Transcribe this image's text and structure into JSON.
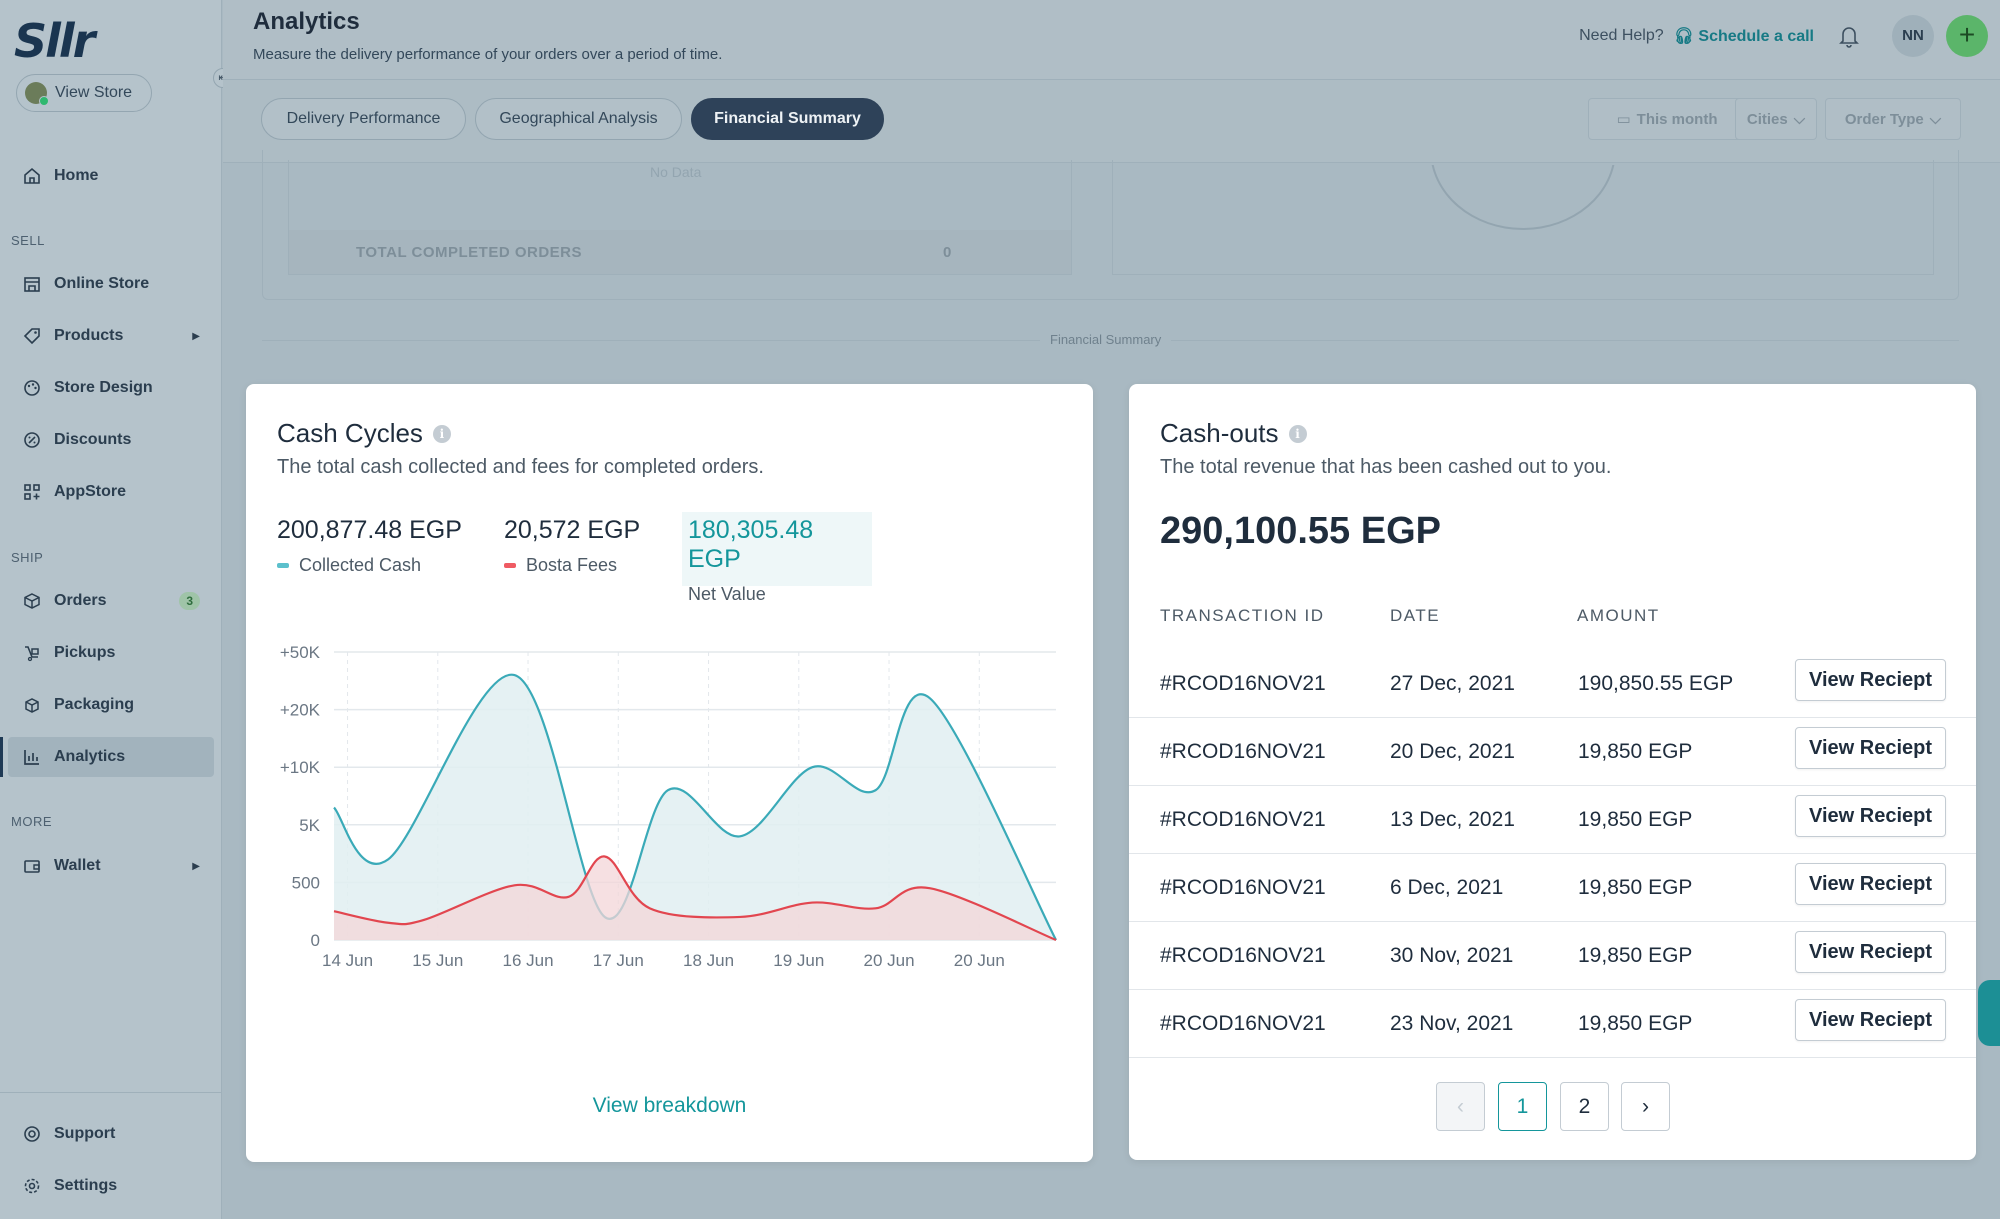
{
  "brand": {
    "logo_text": "Sllr"
  },
  "sidebar": {
    "view_store": "View Store",
    "home": "Home",
    "sections": {
      "sell": "SELL",
      "ship": "SHIP",
      "more": "MORE"
    },
    "items": {
      "online_store": "Online Store",
      "products": "Products",
      "store_design": "Store Design",
      "discounts": "Discounts",
      "appstore": "AppStore",
      "orders": "Orders",
      "orders_badge": "3",
      "pickups": "Pickups",
      "packaging": "Packaging",
      "analytics": "Analytics",
      "wallet": "Wallet",
      "support": "Support",
      "settings": "Settings"
    }
  },
  "header": {
    "title": "Analytics",
    "subtitle": "Measure the delivery performance of your orders over a period of time.",
    "need_help": "Need Help?",
    "schedule": "Schedule a call",
    "user_initials": "NN"
  },
  "tabs": {
    "delivery": "Delivery Performance",
    "geo": "Geographical Analysis",
    "financial": "Financial Summary"
  },
  "filters": {
    "date": "This month",
    "cities": "Cities",
    "order_type": "Order Type"
  },
  "background": {
    "no_data": "No Data",
    "total_completed_label": "TOTAL COMPLETED ORDERS",
    "total_completed_value": "0",
    "section_label": "Financial Summary"
  },
  "cash_cycles": {
    "title": "Cash Cycles",
    "subtitle": "The total cash collected and fees for completed orders.",
    "collected_value": "200,877.48 EGP",
    "collected_label": "Collected Cash",
    "fees_value": "20,572 EGP",
    "fees_label": "Bosta Fees",
    "net_value": "180,305.48 EGP",
    "net_label": "Net Value",
    "view_breakdown": "View breakdown"
  },
  "chart_data": {
    "type": "area",
    "x": [
      "14 Jun",
      "15 Jun",
      "16 Jun",
      "17 Jun",
      "18 Jun",
      "19 Jun",
      "20 Jun",
      "20 Jun"
    ],
    "y_ticks": [
      "0",
      "500",
      "5K",
      "+10K",
      "+20K",
      "+50K"
    ],
    "series": [
      {
        "name": "Collected Cash",
        "color": "#3aaab8",
        "fill": "#e0eef1",
        "points": [
          [
            0,
            2.3
          ],
          [
            0.6,
            1.4
          ],
          [
            2.0,
            4.6
          ],
          [
            3.0,
            0.4
          ],
          [
            3.7,
            2.6
          ],
          [
            4.5,
            1.8
          ],
          [
            5.3,
            3.0
          ],
          [
            6.0,
            2.6
          ],
          [
            6.6,
            4.2
          ],
          [
            8.0,
            0.0
          ]
        ]
      },
      {
        "name": "Bosta Fees",
        "color": "#e2464f",
        "fill": "#f3d6d8",
        "points": [
          [
            0,
            0.5
          ],
          [
            0.6,
            0.3
          ],
          [
            1.0,
            0.35
          ],
          [
            2.0,
            0.95
          ],
          [
            2.6,
            0.75
          ],
          [
            3.0,
            1.45
          ],
          [
            3.5,
            0.55
          ],
          [
            4.5,
            0.4
          ],
          [
            5.3,
            0.65
          ],
          [
            6.0,
            0.55
          ],
          [
            6.6,
            0.9
          ],
          [
            8.0,
            0.0
          ]
        ]
      }
    ],
    "colors": {
      "collected": "#3aaab8",
      "fees": "#e2464f"
    }
  },
  "cash_outs": {
    "title": "Cash-outs",
    "subtitle": "The total revenue that has been cashed out to you.",
    "total": "290,100.55 EGP",
    "columns": [
      "TRANSACTION ID",
      "DATE",
      "AMOUNT"
    ],
    "button_label": "View Reciept",
    "rows": [
      {
        "id": "#RCOD16NOV21",
        "date": "27 Dec, 2021",
        "amount": "190,850.55 EGP"
      },
      {
        "id": "#RCOD16NOV21",
        "date": "20 Dec, 2021",
        "amount": "19,850 EGP"
      },
      {
        "id": "#RCOD16NOV21",
        "date": "13 Dec, 2021",
        "amount": "19,850 EGP"
      },
      {
        "id": "#RCOD16NOV21",
        "date": "6 Dec, 2021",
        "amount": "19,850 EGP"
      },
      {
        "id": "#RCOD16NOV21",
        "date": "30 Nov, 2021",
        "amount": "19,850 EGP"
      },
      {
        "id": "#RCOD16NOV21",
        "date": "23 Nov, 2021",
        "amount": "19,850 EGP"
      }
    ],
    "pagination": {
      "pages": [
        "1",
        "2"
      ],
      "current": "1"
    }
  }
}
